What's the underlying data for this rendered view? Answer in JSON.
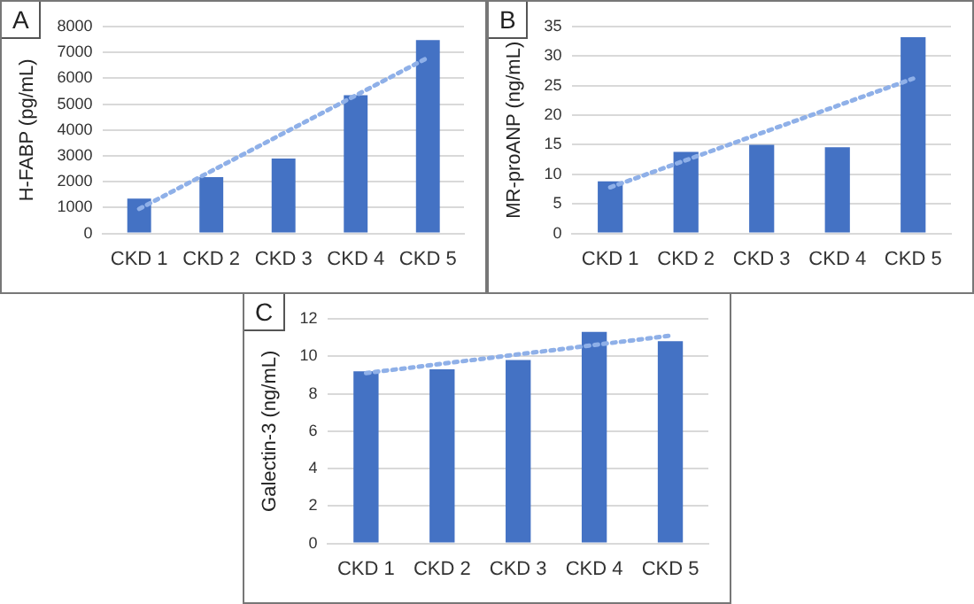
{
  "chart_data": [
    {
      "type": "bar",
      "annotations": [
        "A"
      ],
      "ylabel": "H-FABP (pg/mL)",
      "categories": [
        "CKD 1",
        "CKD 2",
        "CKD 3",
        "CKD 4",
        "CKD 5"
      ],
      "ylim": [
        0,
        8000
      ],
      "yticks": [
        0,
        1000,
        2000,
        3000,
        4000,
        5000,
        6000,
        7000,
        8000
      ],
      "grid": "y",
      "legend": false,
      "series": [
        {
          "color": "#4472c4",
          "values": [
            1350,
            2180,
            2900,
            5350,
            7480
          ]
        },
        {
          "type": "line",
          "color": "#8fb0e8",
          "x": [
            "CKD 1",
            "CKD 5"
          ],
          "values": [
            950,
            6800
          ],
          "line_style": "dotted",
          "marker": "none"
        }
      ]
    },
    {
      "type": "bar",
      "annotations": [
        "B"
      ],
      "ylabel": "MR-proANP (ng/mL)",
      "categories": [
        "CKD 1",
        "CKD 2",
        "CKD 3",
        "CKD 4",
        "CKD 5"
      ],
      "ylim": [
        0,
        35
      ],
      "yticks": [
        0,
        5,
        10,
        15,
        20,
        25,
        30,
        35
      ],
      "grid": "y",
      "legend": false,
      "series": [
        {
          "color": "#4472c4",
          "values": [
            8.8,
            13.8,
            15,
            14.6,
            33.2
          ]
        },
        {
          "type": "line",
          "color": "#8fb0e8",
          "x": [
            "CKD 1",
            "CKD 5"
          ],
          "values": [
            7.8,
            26.2
          ],
          "line_style": "dotted",
          "marker": "none"
        }
      ]
    },
    {
      "type": "bar",
      "annotations": [
        "C"
      ],
      "ylabel": "Galectin-3 (ng/mL)",
      "categories": [
        "CKD 1",
        "CKD 2",
        "CKD 3",
        "CKD 4",
        "CKD 5"
      ],
      "ylim": [
        0,
        12
      ],
      "yticks": [
        0,
        2,
        4,
        6,
        8,
        10,
        12
      ],
      "grid": "y",
      "legend": false,
      "series": [
        {
          "color": "#4472c4",
          "values": [
            9.2,
            9.3,
            9.8,
            11.3,
            10.8
          ]
        },
        {
          "type": "line",
          "color": "#8fb0e8",
          "x": [
            "CKD 1",
            "CKD 5"
          ],
          "values": [
            9.1,
            11.1
          ],
          "line_style": "dotted",
          "marker": "none"
        }
      ]
    }
  ]
}
